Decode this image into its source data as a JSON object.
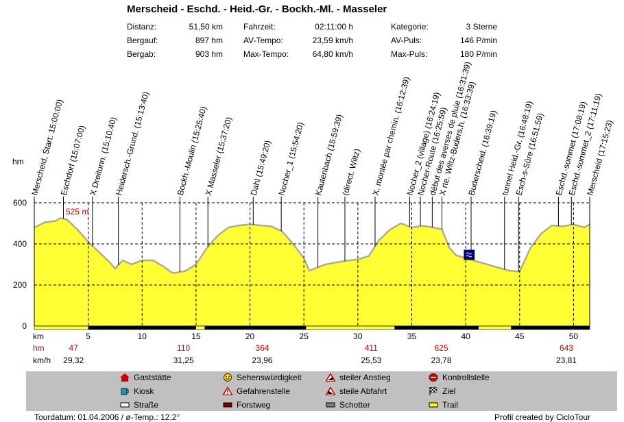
{
  "title": "Merscheid - Eschd. - Heid.-Gr. - Bockh.-Ml. - Masseler",
  "stats": [
    {
      "label": "Distanz:",
      "value": "51,50 km"
    },
    {
      "label": "Bergauf:",
      "value": "897 hm"
    },
    {
      "label": "Bergab:",
      "value": "903 hm"
    },
    {
      "label": "Fahrzeit:",
      "value": "02:11:00 h"
    },
    {
      "label": "AV-Tempo:",
      "value": "23,59 km/h"
    },
    {
      "label": "Max-Tempo:",
      "value": "64,80 km/h"
    },
    {
      "label": "Kategorie:",
      "value": "3 Sterne"
    },
    {
      "label": "AV-Puls:",
      "value": "146 P/min"
    },
    {
      "label": "Max-Puls:",
      "value": "180 P/min"
    }
  ],
  "chart_data": {
    "type": "area",
    "ylabel": "hm",
    "xlabel": "km",
    "xlim": [
      0,
      51.5
    ],
    "ylim": [
      0,
      600
    ],
    "yticks": [
      "0",
      "200",
      "400",
      "600"
    ],
    "xticks": [
      "5",
      "10",
      "15",
      "20",
      "25",
      "30",
      "35",
      "40",
      "45",
      "50"
    ],
    "max_label": "525 m",
    "profile": [
      [
        0,
        480
      ],
      [
        1,
        505
      ],
      [
        2,
        512
      ],
      [
        2.4,
        525
      ],
      [
        3,
        520
      ],
      [
        4,
        470
      ],
      [
        5,
        410
      ],
      [
        6,
        360
      ],
      [
        7,
        310
      ],
      [
        7.5,
        280
      ],
      [
        8.2,
        320
      ],
      [
        9,
        300
      ],
      [
        10,
        320
      ],
      [
        11,
        320
      ],
      [
        12,
        290
      ],
      [
        12.7,
        262
      ],
      [
        13,
        258
      ],
      [
        14,
        268
      ],
      [
        15,
        300
      ],
      [
        16,
        380
      ],
      [
        17,
        440
      ],
      [
        18,
        480
      ],
      [
        19,
        490
      ],
      [
        20,
        495
      ],
      [
        21,
        490
      ],
      [
        22,
        485
      ],
      [
        23,
        460
      ],
      [
        24,
        400
      ],
      [
        25,
        330
      ],
      [
        25.5,
        270
      ],
      [
        27,
        300
      ],
      [
        28,
        310
      ],
      [
        29,
        318
      ],
      [
        30,
        325
      ],
      [
        31,
        340
      ],
      [
        32,
        420
      ],
      [
        33,
        470
      ],
      [
        34,
        500
      ],
      [
        35,
        480
      ],
      [
        36,
        488
      ],
      [
        37,
        480
      ],
      [
        37.8,
        470
      ],
      [
        38.5,
        380
      ],
      [
        39.1,
        345
      ],
      [
        40,
        330
      ],
      [
        41,
        315
      ],
      [
        42,
        300
      ],
      [
        43,
        285
      ],
      [
        44,
        270
      ],
      [
        45,
        265
      ],
      [
        46,
        380
      ],
      [
        47,
        450
      ],
      [
        48,
        490
      ],
      [
        49,
        485
      ],
      [
        50,
        495
      ],
      [
        51,
        480
      ],
      [
        51.5,
        495
      ]
    ],
    "waypoints": [
      {
        "label": "Merscheid, Start: 15:00:00)",
        "km": 0
      },
      {
        "label": "Eschdorf (15:07:00)",
        "km": 2.7
      },
      {
        "label": "X Dreitunn. (15:10:40)",
        "km": 5.4
      },
      {
        "label": "Heidersch.-Grund. (15:13:40)",
        "km": 7.8
      },
      {
        "label": "Bockh.-Moulin (15:25:40)",
        "km": 13.5
      },
      {
        "label": "X Masseler (15:37:20)",
        "km": 16.1
      },
      {
        "label": "Dahl (15:49:20)",
        "km": 20.3
      },
      {
        "label": "Nocher_1 (15:54:20)",
        "km": 22.9
      },
      {
        "label": "Kautenbach (15:59:39)",
        "km": 26.3
      },
      {
        "label": "(direct. Wiltz)",
        "km": 28.8
      },
      {
        "label": "X. montée par chemin. (16:12:39)",
        "km": 31.6
      },
      {
        "label": "Nocher_2 (village) (16:24:19)",
        "km": 34.8
      },
      {
        "label": "Nocher-Route (16:25:59)",
        "km": 35.8
      },
      {
        "label": "début des averses de pluie (16:31:39)",
        "km": 36.9
      },
      {
        "label": "X rte. Wiltz-Buders.h. (16:33:39)",
        "km": 37.8
      },
      {
        "label": "Buderscheid. (16:39:19)",
        "km": 40.5
      },
      {
        "label": "tunnel Heid.-Gr. (16:48:19)",
        "km": 43.6
      },
      {
        "label": "Esch-s-Sûre (16:51:59)",
        "km": 44.9
      },
      {
        "label": "Eschd.-sommet (17:08:19)",
        "km": 48.6
      },
      {
        "label": "Eschd.-sommet_2 (17:11:19)",
        "km": 49.8
      },
      {
        "label": "Merscheid (17:15:23)",
        "km": 51.5
      }
    ],
    "segments_hm": [
      "47",
      "110",
      "364",
      "411",
      "625",
      "643"
    ],
    "segments_kmh": [
      "29,32",
      "31,25",
      "23,96",
      "25,53",
      "23,78",
      "23,81"
    ],
    "segment_label_km": [
      3,
      13.2,
      20.5,
      30.6,
      37.1,
      48.7
    ]
  },
  "legend": {
    "items": [
      {
        "label": "Gaststätte",
        "icon": "house-icon",
        "color": "#cc0000"
      },
      {
        "label": "Kiosk",
        "icon": "cup-icon",
        "color": "#00a0c0"
      },
      {
        "label": "Straße",
        "icon": "road-icon",
        "color": "#ffffff"
      },
      {
        "label": "Sehenswürdigkeit",
        "icon": "smiley-icon",
        "color": "#ffd700"
      },
      {
        "label": "Gefahrenstelle",
        "icon": "warning-icon",
        "color": "#cc0000"
      },
      {
        "label": "Forstweg",
        "icon": "forest-road-icon",
        "color": "#800000"
      },
      {
        "label": "steiler Anstieg",
        "icon": "climb-icon",
        "color": "#cc0000"
      },
      {
        "label": "steile Abfahrt",
        "icon": "descent-icon",
        "color": "#cc0000"
      },
      {
        "label": "Schotter",
        "icon": "gravel-icon",
        "color": "#808080"
      },
      {
        "label": "Kontrollstelle",
        "icon": "stop-icon",
        "color": "#cc0000"
      },
      {
        "label": "Ziel",
        "icon": "finish-flag-icon",
        "color": "#000000"
      },
      {
        "label": "Trail",
        "icon": "trail-icon",
        "color": "#ffff00"
      }
    ]
  },
  "footer": {
    "left": "Tourdatum: 01.04.2006  /  ø-Temp.: 12,2°",
    "right": "Profil created by CicloTour"
  },
  "colors": {
    "fill": "#ffff33",
    "outline": "#aaaaaa",
    "red": "#cc0000"
  }
}
